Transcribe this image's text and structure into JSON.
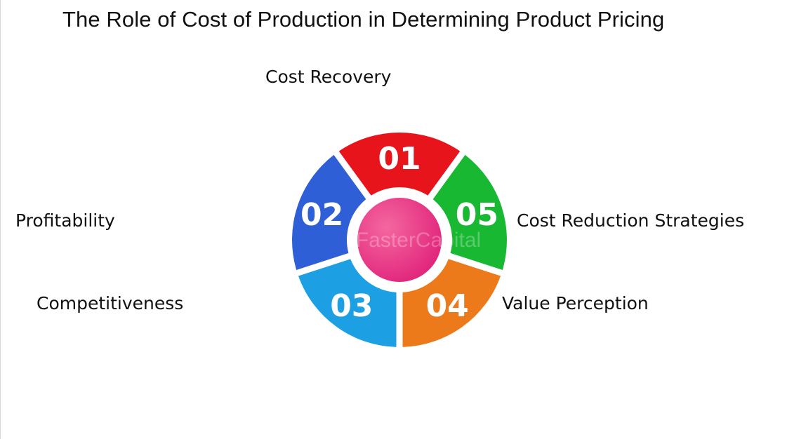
{
  "title": "The Role of Cost of Production in Determining Product Pricing",
  "labels": {
    "cost_recovery": "Cost Recovery",
    "profitability": "Profitability",
    "competitiveness": "Competitiveness",
    "cost_reduction": "Cost Reduction Strategies",
    "value_perception": "Value Perception"
  },
  "wheel": {
    "segments": [
      {
        "number": "01",
        "color": "#e8141c"
      },
      {
        "number": "02",
        "color": "#2f5fd6"
      },
      {
        "number": "03",
        "color": "#1c9fe3"
      },
      {
        "number": "04",
        "color": "#ec7a1b"
      },
      {
        "number": "05",
        "color": "#19b832"
      }
    ],
    "hub_color": "#ee3f86",
    "watermark": "FasterCapital"
  }
}
